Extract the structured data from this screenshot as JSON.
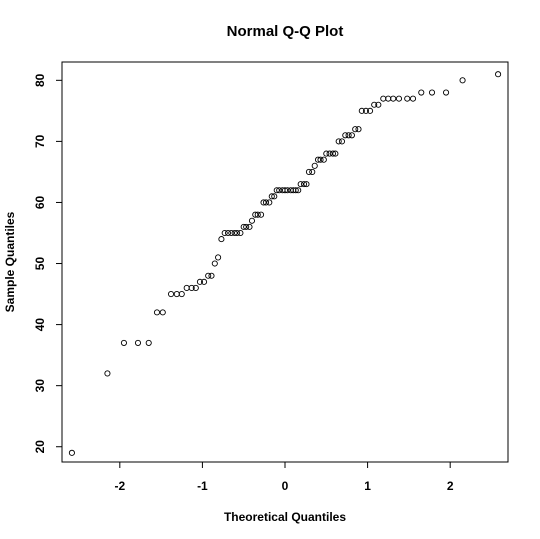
{
  "chart_data": {
    "type": "scatter",
    "title": "Normal Q-Q Plot",
    "xlabel": "Theoretical Quantiles",
    "ylabel": "Sample Quantiles",
    "xlim": [
      -2.7,
      2.7
    ],
    "ylim": [
      17.5,
      83
    ],
    "xticks": [
      -2,
      -1,
      0,
      1,
      2
    ],
    "yticks": [
      20,
      30,
      40,
      50,
      60,
      70,
      80
    ],
    "grid": false,
    "legend": "none",
    "marker": "open-circle",
    "points": [
      [
        -2.58,
        19
      ],
      [
        -2.15,
        32
      ],
      [
        -1.95,
        37
      ],
      [
        -1.78,
        37
      ],
      [
        -1.65,
        37
      ],
      [
        -1.55,
        42
      ],
      [
        -1.48,
        42
      ],
      [
        -1.38,
        45
      ],
      [
        -1.31,
        45
      ],
      [
        -1.25,
        45
      ],
      [
        -1.19,
        46
      ],
      [
        -1.13,
        46
      ],
      [
        -1.08,
        46
      ],
      [
        -1.03,
        47
      ],
      [
        -0.98,
        47
      ],
      [
        -0.93,
        48
      ],
      [
        -0.89,
        48
      ],
      [
        -0.85,
        50
      ],
      [
        -0.81,
        51
      ],
      [
        -0.77,
        54
      ],
      [
        -0.73,
        55
      ],
      [
        -0.69,
        55
      ],
      [
        -0.65,
        55
      ],
      [
        -0.61,
        55
      ],
      [
        -0.58,
        55
      ],
      [
        -0.54,
        55
      ],
      [
        -0.5,
        56
      ],
      [
        -0.47,
        56
      ],
      [
        -0.43,
        56
      ],
      [
        -0.4,
        57
      ],
      [
        -0.36,
        58
      ],
      [
        -0.33,
        58
      ],
      [
        -0.29,
        58
      ],
      [
        -0.26,
        60
      ],
      [
        -0.23,
        60
      ],
      [
        -0.19,
        60
      ],
      [
        -0.16,
        61
      ],
      [
        -0.13,
        61
      ],
      [
        -0.1,
        62
      ],
      [
        -0.07,
        62
      ],
      [
        -0.03,
        62
      ],
      [
        0.0,
        62
      ],
      [
        0.03,
        62
      ],
      [
        0.07,
        62
      ],
      [
        0.1,
        62
      ],
      [
        0.13,
        62
      ],
      [
        0.16,
        62
      ],
      [
        0.19,
        63
      ],
      [
        0.23,
        63
      ],
      [
        0.26,
        63
      ],
      [
        0.29,
        65
      ],
      [
        0.33,
        65
      ],
      [
        0.36,
        66
      ],
      [
        0.4,
        67
      ],
      [
        0.43,
        67
      ],
      [
        0.47,
        67
      ],
      [
        0.5,
        68
      ],
      [
        0.54,
        68
      ],
      [
        0.58,
        68
      ],
      [
        0.61,
        68
      ],
      [
        0.65,
        70
      ],
      [
        0.69,
        70
      ],
      [
        0.73,
        71
      ],
      [
        0.77,
        71
      ],
      [
        0.81,
        71
      ],
      [
        0.85,
        72
      ],
      [
        0.89,
        72
      ],
      [
        0.93,
        75
      ],
      [
        0.98,
        75
      ],
      [
        1.03,
        75
      ],
      [
        1.08,
        76
      ],
      [
        1.13,
        76
      ],
      [
        1.19,
        77
      ],
      [
        1.25,
        77
      ],
      [
        1.31,
        77
      ],
      [
        1.38,
        77
      ],
      [
        1.48,
        77
      ],
      [
        1.55,
        77
      ],
      [
        1.65,
        78
      ],
      [
        1.78,
        78
      ],
      [
        1.95,
        78
      ],
      [
        2.15,
        80
      ],
      [
        2.58,
        81
      ]
    ]
  }
}
